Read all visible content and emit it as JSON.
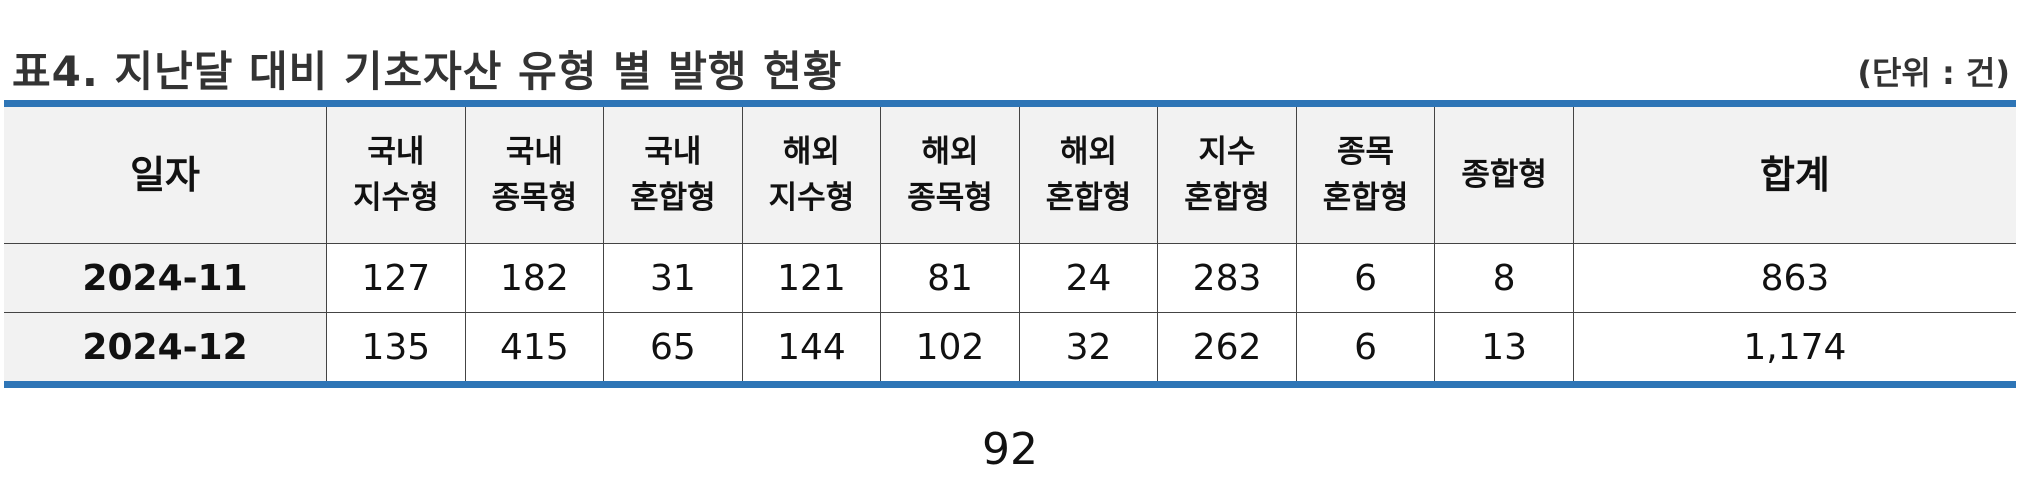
{
  "header": {
    "title": "표4. 지난달 대비 기초자산 유형 별 발행 현황",
    "unit": "(단위 : 건)"
  },
  "table": {
    "columns": [
      {
        "line1": "일자",
        "line2": ""
      },
      {
        "line1": "국내",
        "line2": "지수형"
      },
      {
        "line1": "국내",
        "line2": "종목형"
      },
      {
        "line1": "국내",
        "line2": "혼합형"
      },
      {
        "line1": "해외",
        "line2": "지수형"
      },
      {
        "line1": "해외",
        "line2": "종목형"
      },
      {
        "line1": "해외",
        "line2": "혼합형"
      },
      {
        "line1": "지수",
        "line2": "혼합형"
      },
      {
        "line1": "종목",
        "line2": "혼합형"
      },
      {
        "line1": "종합형",
        "line2": ""
      },
      {
        "line1": "합계",
        "line2": ""
      }
    ],
    "rows": [
      {
        "date": "2024-11",
        "values": [
          "127",
          "182",
          "31",
          "121",
          "81",
          "24",
          "283",
          "6",
          "8",
          "863"
        ]
      },
      {
        "date": "2024-12",
        "values": [
          "135",
          "415",
          "65",
          "144",
          "102",
          "32",
          "262",
          "6",
          "13",
          "1,174"
        ]
      }
    ]
  },
  "footer": {
    "page_number": "92"
  }
}
